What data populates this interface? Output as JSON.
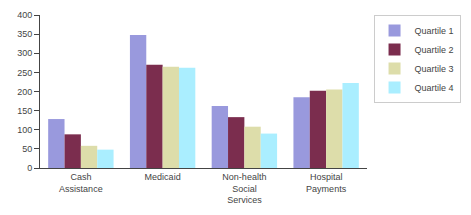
{
  "chart_data": {
    "type": "bar",
    "categories": [
      "Cash\nAssistance",
      "Medicaid",
      "Non-health\nSocial\nServices",
      "Hospital\nPayments"
    ],
    "series": [
      {
        "name": "Quartile 1",
        "color": "#9999dd",
        "values": [
          128,
          348,
          162,
          185
        ]
      },
      {
        "name": "Quartile 2",
        "color": "#7b2d4e",
        "values": [
          88,
          270,
          133,
          202
        ]
      },
      {
        "name": "Quartile 3",
        "color": "#ddddaa",
        "values": [
          58,
          265,
          108,
          205
        ]
      },
      {
        "name": "Quartile 4",
        "color": "#aaeeff",
        "values": [
          48,
          262,
          90,
          222
        ]
      }
    ],
    "ylim": [
      0,
      400
    ],
    "yticks": [
      0,
      50,
      100,
      150,
      200,
      250,
      300,
      350,
      400
    ],
    "grid": false,
    "legend": "right"
  }
}
